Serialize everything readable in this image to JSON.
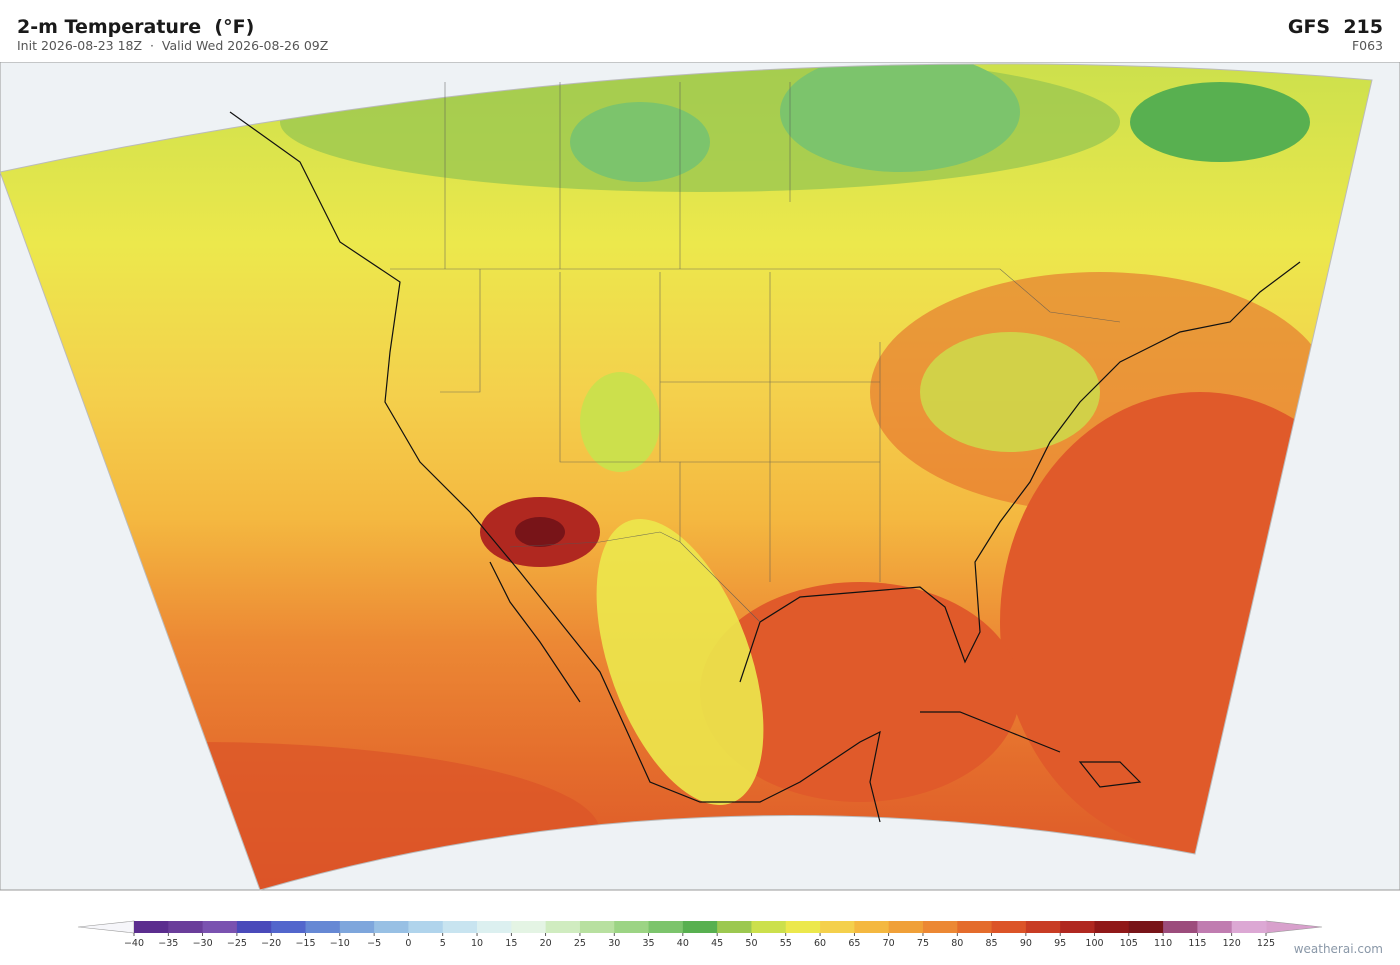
{
  "header": {
    "title": "2-m Temperature  (°F)",
    "subtitle": "Init 2026-08-23 18Z  ·  Valid Wed 2026-08-26 09Z",
    "model": "GFS  215",
    "forecast_hour": "F063"
  },
  "colorbar": {
    "ticks": [
      {
        "value": -40,
        "label": "−40"
      },
      {
        "value": -35,
        "label": "−35"
      },
      {
        "value": -30,
        "label": "−30"
      },
      {
        "value": -25,
        "label": "−25"
      },
      {
        "value": -20,
        "label": "−20"
      },
      {
        "value": -15,
        "label": "−15"
      },
      {
        "value": -10,
        "label": "−10"
      },
      {
        "value": -5,
        "label": "−5"
      },
      0,
      5,
      10,
      15,
      20,
      25,
      30,
      35,
      40,
      45,
      50,
      55,
      60,
      65,
      70,
      75,
      80,
      85,
      90,
      95,
      100,
      105,
      110,
      115,
      120,
      125
    ],
    "colors": [
      "#5b2d8e",
      "#6a3d9a",
      "#7a52b0",
      "#4a4aba",
      "#5266cc",
      "#6688d4",
      "#7ea6dc",
      "#98c0e4",
      "#b0d4ec",
      "#c8e4f0",
      "#dcf0f0",
      "#e4f4e4",
      "#d0ecc0",
      "#b8e0a0",
      "#9cd484",
      "#7cc46c",
      "#58b050",
      "#9cc850",
      "#cce04c",
      "#ece84c",
      "#f4d04c",
      "#f4b840",
      "#f0a038",
      "#ec8834",
      "#e46c2c",
      "#dc5428",
      "#c83c24",
      "#b02820",
      "#901818",
      "#781418",
      "#9c4c7c",
      "#c07cb0",
      "#dca8d4"
    ],
    "under_color": "#f6f6fa",
    "over_color": "#d8a0cc"
  },
  "watermark": "weatherai.com"
}
